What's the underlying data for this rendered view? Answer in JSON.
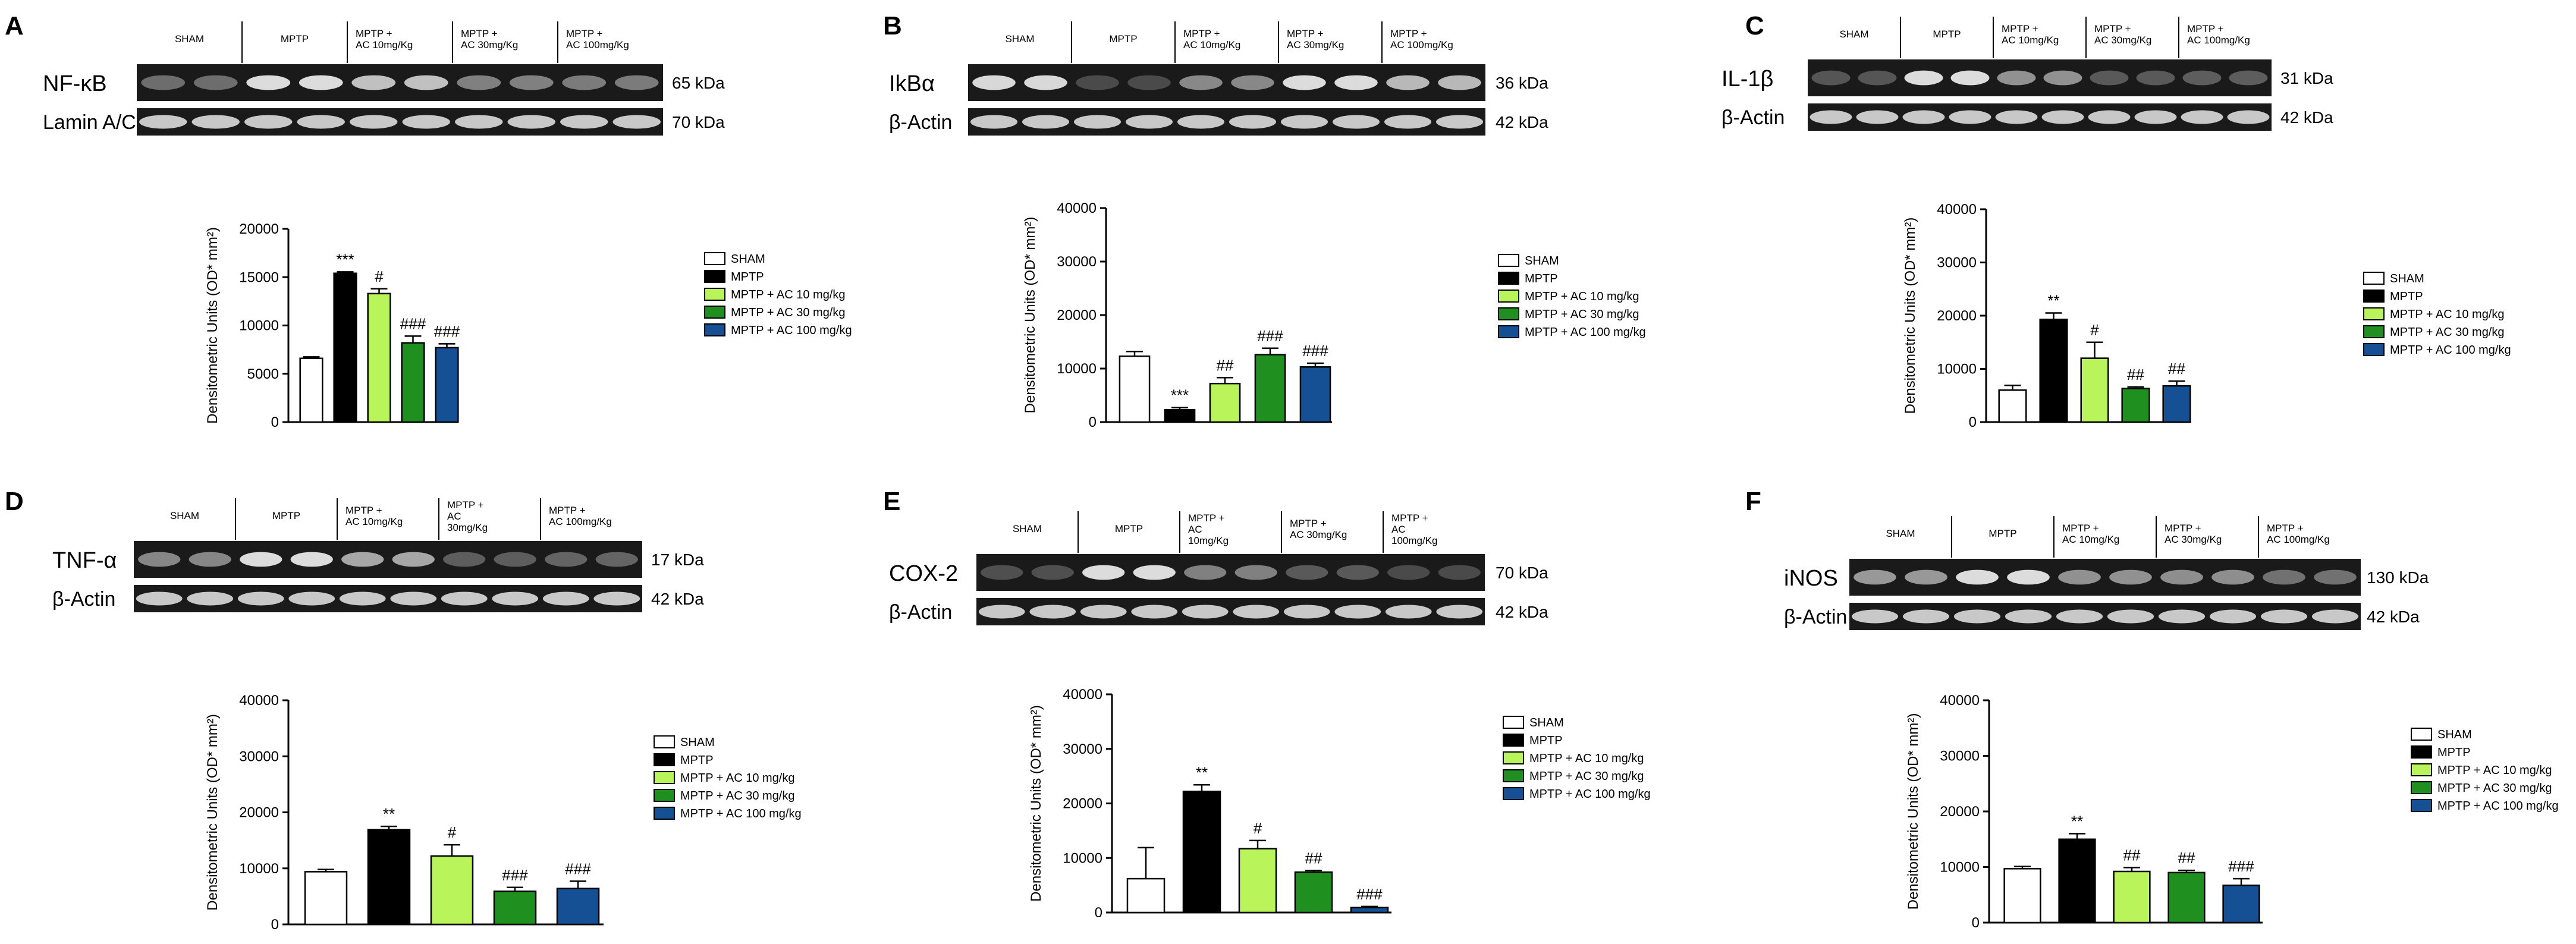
{
  "colors": {
    "sham": "#ffffff",
    "mptp": "#000000",
    "ac10": "#b9f55a",
    "ac30": "#1f8f1f",
    "ac100": "#154f94",
    "blot_bg": "#1a1a1a",
    "band": "#dcdcdc"
  },
  "legend_labels": [
    "SHAM",
    "MPTP",
    "MPTP + AC 10 mg/kg",
    "MPTP + AC 30 mg/kg",
    "MPTP + AC 100 mg/kg"
  ],
  "chart_data": [
    {
      "panel": "A",
      "type": "bar",
      "protein": "NF-κB",
      "control": "Lamin A/C",
      "protein_kda": "65 kDa",
      "control_kda": "70 kDa",
      "lanes": [
        "SHAM",
        "MPTP",
        "MPTP +\nAC 10mg/Kg",
        "MPTP +\nAC 30mg/Kg",
        "MPTP +\nAC 100mg/Kg"
      ],
      "ylabel": "Densitometric Units (OD* mm²)",
      "ylim": [
        0,
        20000
      ],
      "yticks": [
        "0",
        "5000",
        "10000",
        "15000",
        "20000"
      ],
      "categories": [
        "SHAM",
        "MPTP",
        "MPTP + AC 10 mg/kg",
        "MPTP + AC 30 mg/kg",
        "MPTP + AC 100 mg/kg"
      ],
      "values": [
        6600,
        15400,
        13300,
        8200,
        7700
      ],
      "errors": [
        150,
        150,
        500,
        700,
        400
      ],
      "annotations": [
        "",
        "***",
        "#",
        "###",
        "###"
      ]
    },
    {
      "panel": "B",
      "type": "bar",
      "protein": "IkBα",
      "control": "β-Actin",
      "protein_kda": "36 kDa",
      "control_kda": "42 kDa",
      "lanes": [
        "SHAM",
        "MPTP",
        "MPTP +\nAC 10mg/Kg",
        "MPTP +\nAC 30mg/Kg",
        "MPTP +\nAC 100mg/Kg"
      ],
      "ylabel": "Densitometric Units (OD* mm²)",
      "ylim": [
        0,
        40000
      ],
      "yticks": [
        "0",
        "10000",
        "20000",
        "30000",
        "40000"
      ],
      "categories": [
        "SHAM",
        "MPTP",
        "MPTP + AC 10 mg/kg",
        "MPTP + AC 30 mg/kg",
        "MPTP + AC 100 mg/kg"
      ],
      "values": [
        12300,
        2300,
        7200,
        12600,
        10300
      ],
      "errors": [
        900,
        400,
        1100,
        1200,
        700
      ],
      "annotations": [
        "",
        "***",
        "##",
        "###",
        "###"
      ]
    },
    {
      "panel": "C",
      "type": "bar",
      "protein": "IL-1β",
      "control": "β-Actin",
      "protein_kda": "31 kDa",
      "control_kda": "42 kDa",
      "lanes": [
        "SHAM",
        "MPTP",
        "MPTP +\nAC 10mg/Kg",
        "MPTP +\nAC 30mg/Kg",
        "MPTP +\nAC 100mg/Kg"
      ],
      "ylabel": "Densitometric Units (OD* mm²)",
      "ylim": [
        0,
        40000
      ],
      "yticks": [
        "0",
        "10000",
        "20000",
        "30000",
        "40000"
      ],
      "categories": [
        "SHAM",
        "MPTP",
        "MPTP + AC 10 mg/kg",
        "MPTP + AC 30 mg/kg",
        "MPTP + AC 100 mg/kg"
      ],
      "values": [
        6000,
        19300,
        12000,
        6300,
        6800
      ],
      "errors": [
        900,
        1200,
        3000,
        300,
        900
      ],
      "annotations": [
        "",
        "**",
        "#",
        "##",
        "##"
      ]
    },
    {
      "panel": "D",
      "type": "bar",
      "protein": "TNF-α",
      "control": "β-Actin",
      "protein_kda": "17 kDa",
      "control_kda": "42 kDa",
      "lanes": [
        "SHAM",
        "MPTP",
        "MPTP +\nAC 10mg/Kg",
        "MPTP +\nAC\n30mg/Kg",
        "MPTP +\nAC 100mg/Kg"
      ],
      "ylabel": "Densitometric Units (OD* mm²)",
      "ylim": [
        0,
        40000
      ],
      "yticks": [
        "0",
        "10000",
        "20000",
        "30000",
        "40000"
      ],
      "categories": [
        "SHAM",
        "MPTP",
        "MPTP + AC 10 mg/kg",
        "MPTP + AC 30 mg/kg",
        "MPTP + AC 100 mg/kg"
      ],
      "values": [
        9400,
        16900,
        12200,
        5900,
        6400
      ],
      "errors": [
        400,
        600,
        2000,
        700,
        1300
      ],
      "annotations": [
        "",
        "**",
        "#",
        "###",
        "###"
      ]
    },
    {
      "panel": "E",
      "type": "bar",
      "protein": "COX-2",
      "control": "β-Actin",
      "protein_kda": "70 kDa",
      "control_kda": "42 kDa",
      "lanes": [
        "SHAM",
        "MPTP",
        "MPTP +\nAC\n10mg/Kg",
        "MPTP +\nAC 30mg/Kg",
        "MPTP +\nAC\n100mg/Kg"
      ],
      "ylabel": "Densitometric Units (OD* mm²)",
      "ylim": [
        0,
        40000
      ],
      "yticks": [
        "0",
        "10000",
        "20000",
        "30000",
        "40000"
      ],
      "categories": [
        "SHAM",
        "MPTP",
        "MPTP + AC 10 mg/kg",
        "MPTP + AC 30 mg/kg",
        "MPTP + AC 100 mg/kg"
      ],
      "values": [
        6200,
        22200,
        11700,
        7400,
        900
      ],
      "errors": [
        5700,
        1200,
        1500,
        300,
        200
      ],
      "annotations": [
        "",
        "**",
        "#",
        "##",
        "###"
      ]
    },
    {
      "panel": "F",
      "type": "bar",
      "protein": "iNOS",
      "control": "β-Actin",
      "protein_kda": "130 kDa",
      "control_kda": "42 kDa",
      "lanes": [
        "SHAM",
        "MPTP",
        "MPTP +\nAC 10mg/Kg",
        "MPTP +\nAC 30mg/Kg",
        "MPTP +\nAC 100mg/Kg"
      ],
      "ylabel": "Densitometric Units (OD* mm²)",
      "ylim": [
        0,
        40000
      ],
      "yticks": [
        "0",
        "10000",
        "20000",
        "30000",
        "40000"
      ],
      "categories": [
        "SHAM",
        "MPTP",
        "MPTP + AC 10 mg/kg",
        "MPTP + AC 30 mg/kg",
        "MPTP + AC 100 mg/kg"
      ],
      "values": [
        9700,
        15000,
        9200,
        9000,
        6700
      ],
      "errors": [
        400,
        1000,
        700,
        400,
        1200
      ],
      "annotations": [
        "",
        "**",
        "##",
        "##",
        "###"
      ]
    }
  ]
}
